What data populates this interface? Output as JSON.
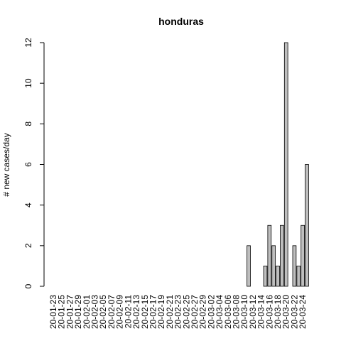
{
  "chart_data": {
    "type": "bar",
    "title": "honduras",
    "ylabel": "# new cases/day",
    "categories": [
      "20-01-23",
      null,
      "20-01-25",
      null,
      "20-01-27",
      null,
      "20-01-29",
      null,
      "20-02-01",
      null,
      "20-02-03",
      null,
      "20-02-05",
      null,
      "20-02-07",
      null,
      "20-02-09",
      null,
      "20-02-11",
      null,
      "20-02-13",
      null,
      "20-02-15",
      null,
      "20-02-17",
      null,
      "20-02-19",
      null,
      "20-02-21",
      null,
      "20-02-23",
      null,
      "20-02-25",
      null,
      "20-02-27",
      null,
      "20-02-29",
      null,
      "20-03-02",
      null,
      "20-03-04",
      null,
      "20-03-06",
      null,
      "20-03-08",
      null,
      "20-03-10",
      null,
      "20-03-12",
      null,
      "20-03-14",
      null,
      "20-03-16",
      null,
      "20-03-18",
      null,
      "20-03-20",
      null,
      "20-03-22",
      null,
      "20-03-24",
      null
    ],
    "values": [
      0,
      0,
      0,
      0,
      0,
      0,
      0,
      0,
      0,
      0,
      0,
      0,
      0,
      0,
      0,
      0,
      0,
      0,
      0,
      0,
      0,
      0,
      0,
      0,
      0,
      0,
      0,
      0,
      0,
      0,
      0,
      0,
      0,
      0,
      0,
      0,
      0,
      0,
      0,
      0,
      0,
      0,
      0,
      0,
      0,
      0,
      0,
      2,
      0,
      0,
      0,
      1,
      3,
      2,
      1,
      3,
      12,
      0,
      2,
      1,
      3,
      6
    ],
    "color": "#bebebe",
    "ylim": [
      0,
      12
    ],
    "yticks": [
      0,
      2,
      4,
      6,
      8,
      10,
      12
    ]
  }
}
